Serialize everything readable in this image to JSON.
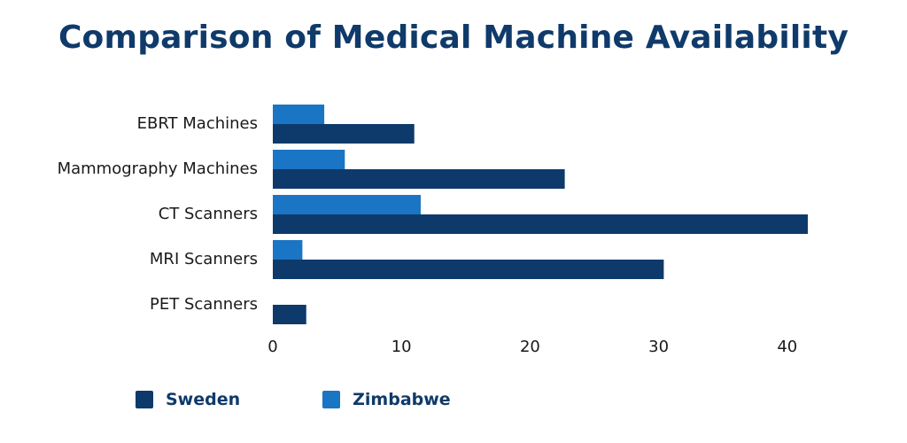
{
  "chart_data": {
    "type": "bar",
    "orientation": "horizontal",
    "title": "Comparison of Medical Machine Availability",
    "xlabel": "",
    "ylabel": "",
    "categories": [
      "EBRT Machines",
      "Mammography Machines",
      "CT Scanners",
      "MRI Scanners",
      "PET Scanners"
    ],
    "series": [
      {
        "name": "Zimbabwe",
        "color": "#1a75c4",
        "values": [
          4,
          5.6,
          11.5,
          2.3,
          0
        ]
      },
      {
        "name": "Sweden",
        "color": "#0d3a6b",
        "values": [
          11,
          22.7,
          41.6,
          30.4,
          2.6
        ]
      }
    ],
    "xlim": [
      0,
      42
    ],
    "xticks": [
      0,
      10,
      20,
      30,
      40
    ],
    "grid": false,
    "legend_position": "bottom-left"
  },
  "legend": {
    "items": [
      {
        "name": "Sweden",
        "color": "#0d3a6b"
      },
      {
        "name": "Zimbabwe",
        "color": "#1a75c4"
      }
    ]
  }
}
